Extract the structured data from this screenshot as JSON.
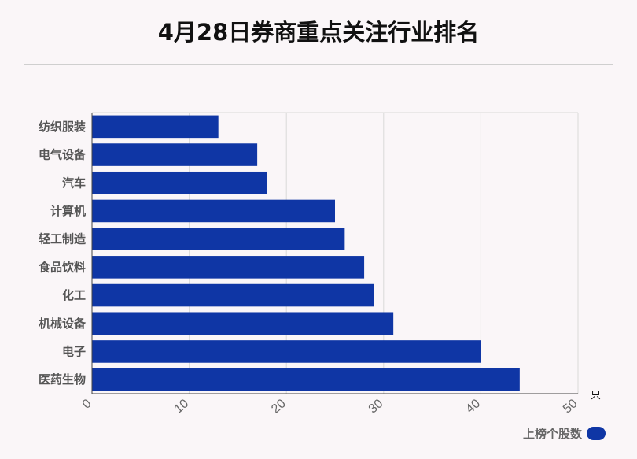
{
  "chart_data": {
    "type": "bar",
    "orientation": "horizontal",
    "title": "4月28日券商重点关注行业排名",
    "categories": [
      "纺织服装",
      "电气设备",
      "汽车",
      "计算机",
      "轻工制造",
      "食品饮料",
      "化工",
      "机械设备",
      "电子",
      "医药生物"
    ],
    "series": [
      {
        "name": "上榜个股数",
        "values": [
          13,
          17,
          18,
          25,
          26,
          28,
          29,
          31,
          40,
          44
        ]
      }
    ],
    "xlim": [
      0,
      50
    ],
    "xticks": [
      "0",
      "10",
      "20",
      "30",
      "40",
      "50"
    ],
    "xunit": "只",
    "grid": true,
    "legend_position": "bottom-right",
    "bar_color": "#0f36a5"
  }
}
